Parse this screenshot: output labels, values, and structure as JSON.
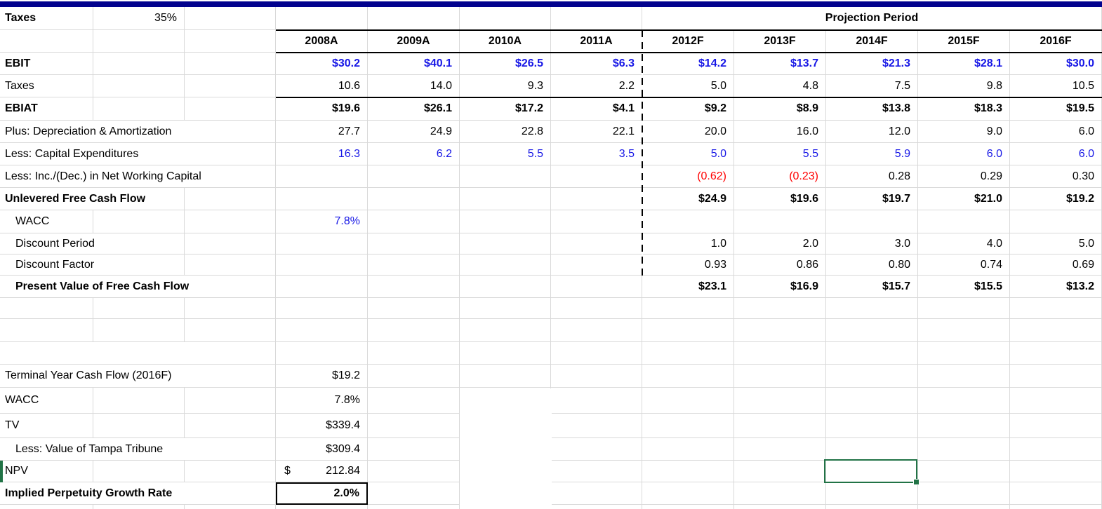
{
  "sheet": {
    "assumptions": {
      "tax_label": "Taxes",
      "tax_rate": "35%"
    },
    "projection_header": "Projection Period",
    "columns": [
      "2008A",
      "2009A",
      "2010A",
      "2011A",
      "2012F",
      "2013F",
      "2014F",
      "2015F",
      "2016F"
    ],
    "colors": {
      "top_accent_bar": "#02028E",
      "input_blue": "#1717E6",
      "negative_red": "#FF0000",
      "selection_green": "#217346",
      "gridline_gray": "#D9D9D9"
    },
    "rows": [
      {
        "name": "assumptions-row",
        "type": "assumptions"
      },
      {
        "name": "year-header-row",
        "type": "years"
      },
      {
        "name": "row-ebit",
        "label": "EBIT",
        "bold": 1,
        "span": 1,
        "value_bold": 1,
        "value_color": "blue",
        "values": [
          "$30.2",
          "$40.1",
          "$26.5",
          "$6.3",
          "$14.2",
          "$13.7",
          "$21.3",
          "$28.1",
          "$30.0"
        ]
      },
      {
        "name": "row-taxes",
        "label": "Taxes",
        "span": 1,
        "values": [
          "10.6",
          "14.0",
          "9.3",
          "2.2",
          "5.0",
          "4.8",
          "7.5",
          "9.8",
          "10.5"
        ]
      },
      {
        "name": "row-ebiat",
        "label": "EBIAT",
        "bold": 1,
        "span": 1,
        "value_bold": 1,
        "values": [
          "$19.6",
          "$26.1",
          "$17.2",
          "$4.1",
          "$9.2",
          "$8.9",
          "$13.8",
          "$18.3",
          "$19.5"
        ]
      },
      {
        "name": "row-depreciation",
        "label": "Plus: Depreciation & Amortization",
        "span": 3,
        "values": [
          "27.7",
          "24.9",
          "22.8",
          "22.1",
          "20.0",
          "16.0",
          "12.0",
          "9.0",
          "6.0"
        ]
      },
      {
        "name": "row-capex",
        "label": "Less: Capital Expenditures",
        "span": 3,
        "value_color": "blue",
        "values": [
          "16.3",
          "6.2",
          "5.5",
          "3.5",
          "5.0",
          "5.5",
          "5.9",
          "6.0",
          "6.0"
        ]
      },
      {
        "name": "row-nwc",
        "label": "Less: Inc./(Dec.) in Net Working Capital",
        "span": 3,
        "value_color": "red-negatives",
        "values": [
          "",
          "",
          "",
          "",
          "(0.62)",
          "(0.23)",
          "0.28",
          "0.29",
          "0.30"
        ]
      },
      {
        "name": "row-ufcf",
        "label": "Unlevered Free Cash Flow",
        "bold": 1,
        "span": 2,
        "value_bold": 1,
        "values": [
          "",
          "",
          "",
          "",
          "$24.9",
          "$19.6",
          "$19.7",
          "$21.0",
          "$19.2"
        ]
      },
      {
        "name": "row-wacc",
        "label": "WACC",
        "indent": 1,
        "span": 1,
        "value_color": "blue",
        "values": [
          "7.8%",
          "",
          "",
          "",
          "",
          "",
          "",
          "",
          ""
        ]
      },
      {
        "name": "row-discount-period",
        "label": "Discount Period",
        "indent": 1,
        "span": 2,
        "values": [
          "",
          "",
          "",
          "",
          "1.0",
          "2.0",
          "3.0",
          "4.0",
          "5.0"
        ]
      },
      {
        "name": "row-discount-factor",
        "label": "Discount Factor",
        "indent": 1,
        "span": 2,
        "values": [
          "",
          "",
          "",
          "",
          "0.93",
          "0.86",
          "0.80",
          "0.74",
          "0.69"
        ]
      },
      {
        "name": "row-pv-fcf",
        "label": "Present Value of Free Cash Flow",
        "bold": 1,
        "indent": 1,
        "span": 3,
        "value_bold": 1,
        "values": [
          "",
          "",
          "",
          "",
          "$23.1",
          "$16.9",
          "$15.7",
          "$15.5",
          "$13.2"
        ]
      },
      {
        "name": "row-empty-1",
        "span": 1
      },
      {
        "name": "row-empty-2",
        "span": 1
      },
      {
        "name": "row-empty-3",
        "span": 3
      },
      {
        "name": "row-terminal-cf",
        "label": "Terminal Year Cash Flow (2016F)",
        "span": 3,
        "values": [
          "$19.2",
          "",
          "",
          "",
          "",
          "",
          "",
          "",
          ""
        ]
      },
      {
        "name": "row-wacc-2",
        "label": "WACC",
        "span": 1,
        "values": [
          "7.8%",
          "",
          "",
          "",
          "",
          "",
          "",
          "",
          ""
        ]
      },
      {
        "name": "row-tv",
        "label": "TV",
        "span": 1,
        "values": [
          "$339.4",
          "",
          "",
          "",
          "",
          "",
          "",
          "",
          ""
        ]
      },
      {
        "name": "row-tampa",
        "label": "Less: Value of Tampa Tribune",
        "indent": 1,
        "span": 3,
        "values": [
          "$309.4",
          "",
          "",
          "",
          "",
          "",
          "",
          "",
          ""
        ]
      },
      {
        "name": "row-npv",
        "label": "NPV",
        "span": 1,
        "format": "accounting",
        "currency": "$",
        "amount": "212.84"
      },
      {
        "name": "row-implied-growth",
        "label": "Implied Perpetuity Growth Rate",
        "bold": 1,
        "span": 3,
        "value_bold": 1,
        "boxed": 1,
        "values": [
          "2.0%",
          "",
          "",
          "",
          "",
          "",
          "",
          "",
          ""
        ]
      },
      {
        "name": "row-partial-bottom",
        "span": 1,
        "no_bottom": 1
      }
    ],
    "selection": {
      "active_cell_column": "2014F",
      "active_cell_row_label": "NPV"
    }
  }
}
